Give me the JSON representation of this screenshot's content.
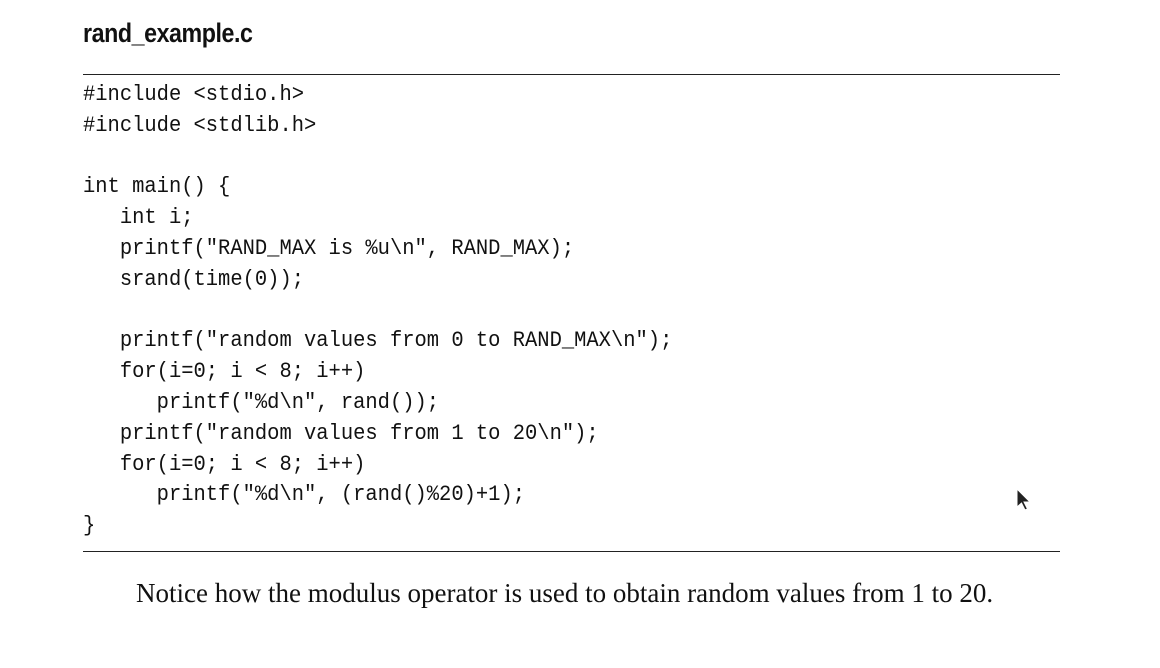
{
  "document": {
    "file_title": "rand_example.c",
    "code_lines": [
      "#include <stdio.h>",
      "#include <stdlib.h>",
      "",
      "int main() {",
      "   int i;",
      "   printf(\"RAND_MAX is %u\\n\", RAND_MAX);",
      "   srand(time(0));",
      "",
      "   printf(\"random values from 0 to RAND_MAX\\n\");",
      "   for(i=0; i < 8; i++)",
      "      printf(\"%d\\n\", rand());",
      "   printf(\"random values from 1 to 20\\n\");",
      "   for(i=0; i < 8; i++)",
      "      printf(\"%d\\n\", (rand()%20)+1);",
      "}"
    ],
    "paragraph": "Notice how the modulus operator is used to obtain random values from 1 to 20."
  },
  "icons": {
    "cursor": "mouse-pointer-icon"
  },
  "colors": {
    "text": "#111111",
    "background": "#ffffff",
    "rule": "#222222"
  }
}
